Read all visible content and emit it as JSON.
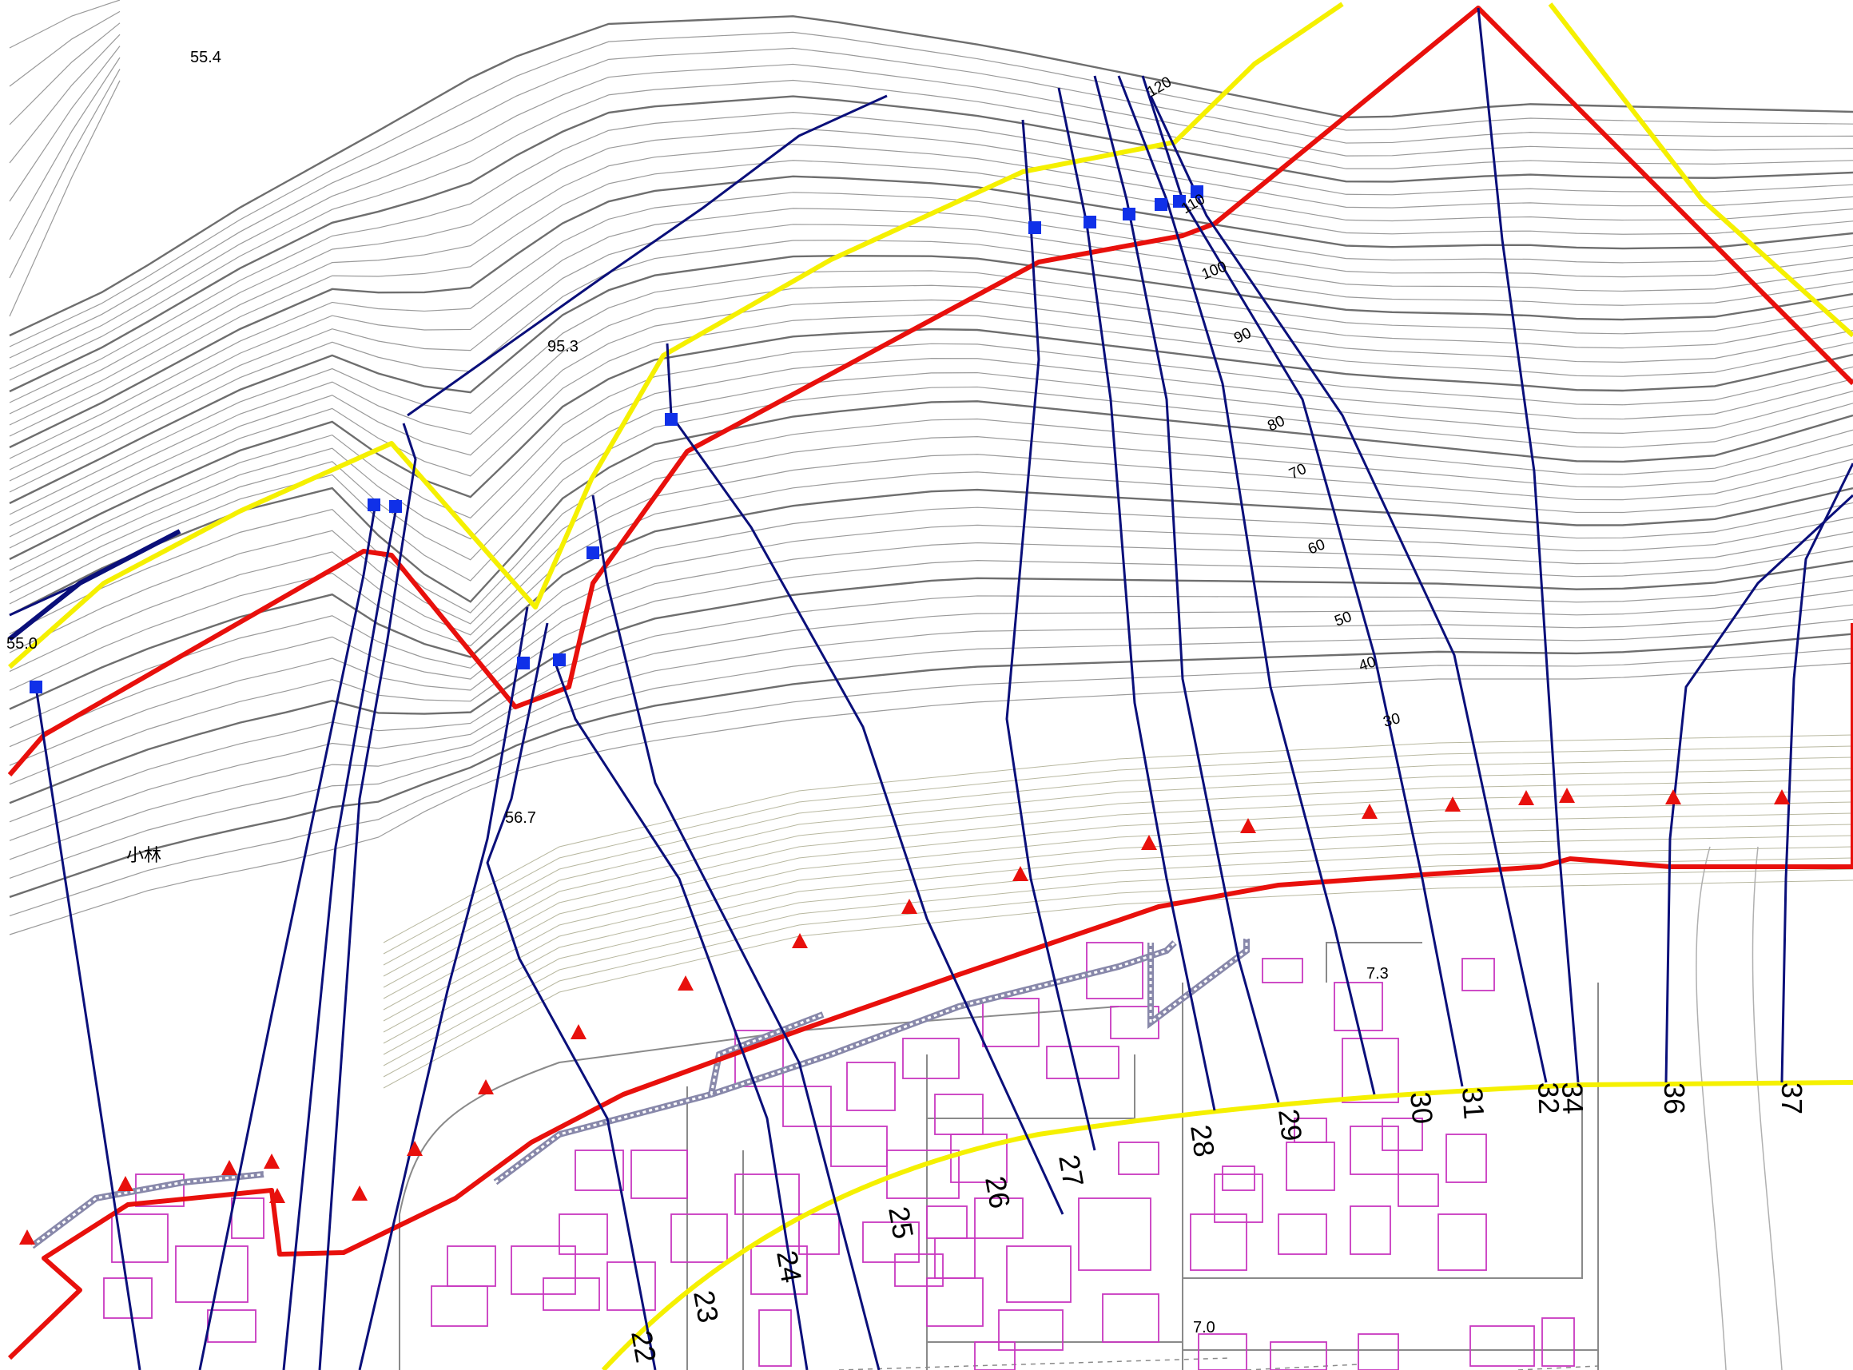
{
  "map": {
    "colors": {
      "background": "#ffffff",
      "contour_minor": "#9a9a9a",
      "contour_major": "#6e6e6e",
      "section_line": "#0a0f7a",
      "red_boundary": "#e8100c",
      "yellow_boundary": "#f5f000",
      "blue_marker": "#1030e8",
      "red_marker": "#e8100c",
      "building": "#c838c0",
      "road_edge": "#8a8a8a",
      "wall": "#8888aa"
    },
    "place_label": "小林",
    "spot_heights": [
      "55.4",
      "95.3",
      "56.7",
      "7.3",
      "7.0",
      "55.0"
    ],
    "contour_labels": [
      "120",
      "110",
      "100",
      "90",
      "80",
      "70",
      "60",
      "50",
      "40",
      "30"
    ],
    "section_numbers": [
      "22",
      "23",
      "24",
      "25",
      "26",
      "27",
      "28",
      "29",
      "30",
      "31",
      "32",
      "34",
      "36",
      "37"
    ],
    "marker_types": [
      "blue-square-marker",
      "red-triangle-marker"
    ]
  }
}
